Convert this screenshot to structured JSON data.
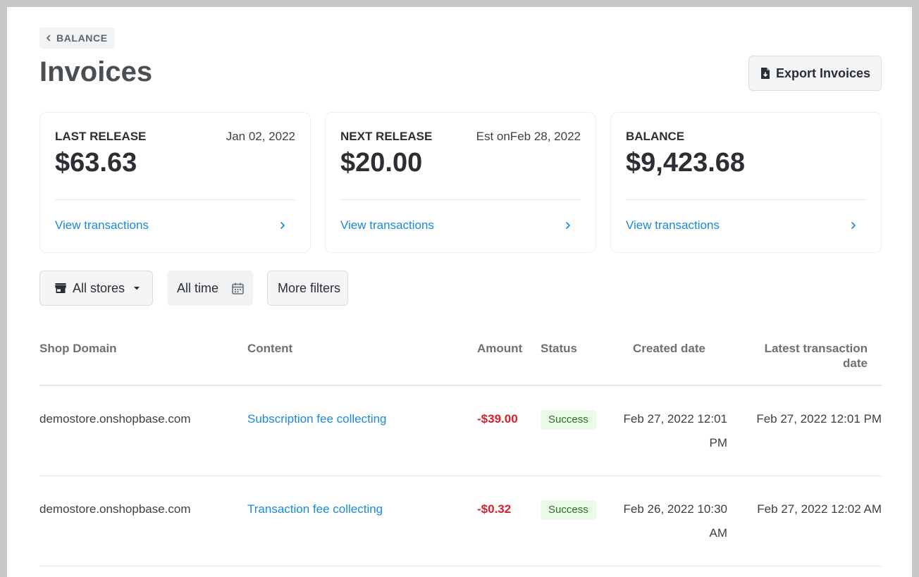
{
  "header": {
    "back_label": "BALANCE",
    "title": "Invoices",
    "export_label": "Export Invoices"
  },
  "cards": [
    {
      "label": "LAST RELEASE",
      "date": "Jan 02, 2022",
      "amount": "$63.63",
      "link": "View transactions"
    },
    {
      "label": "NEXT RELEASE",
      "date": "Est onFeb 28, 2022",
      "amount": "$20.00",
      "link": "View transactions"
    },
    {
      "label": "BALANCE",
      "date": "",
      "amount": "$9,423.68",
      "link": "View transactions"
    }
  ],
  "filters": {
    "stores": "All stores",
    "time": "All time",
    "more": "More filters"
  },
  "table": {
    "columns": {
      "domain": "Shop Domain",
      "content": "Content",
      "amount": "Amount",
      "status": "Status",
      "created": "Created date",
      "latest_line1": "Latest transaction",
      "latest_line2": "date"
    },
    "rows": [
      {
        "domain": "demostore.onshopbase.com",
        "content": "Subscription fee collecting",
        "amount": "-$39.00",
        "status": "Success",
        "created_line1": "Feb 27, 2022 12:01",
        "created_line2": "PM",
        "latest": "Feb 27, 2022 12:01 PM"
      },
      {
        "domain": "demostore.onshopbase.com",
        "content": "Transaction fee collecting",
        "amount": "-$0.32",
        "status": "Success",
        "created_line1": "Feb 26, 2022 10:30",
        "created_line2": "AM",
        "latest": "Feb 27, 2022 12:02 AM"
      }
    ]
  },
  "colors": {
    "link": "#1a8ad8",
    "negative_amount": "#d6202b",
    "success_bg": "#eafbe7"
  },
  "icons": {
    "back": "chevron-left-icon",
    "export": "file-export-icon",
    "card_link": "chevron-right-icon",
    "stores": "store-icon",
    "stores_caret": "caret-down-icon",
    "time": "calendar-icon"
  }
}
